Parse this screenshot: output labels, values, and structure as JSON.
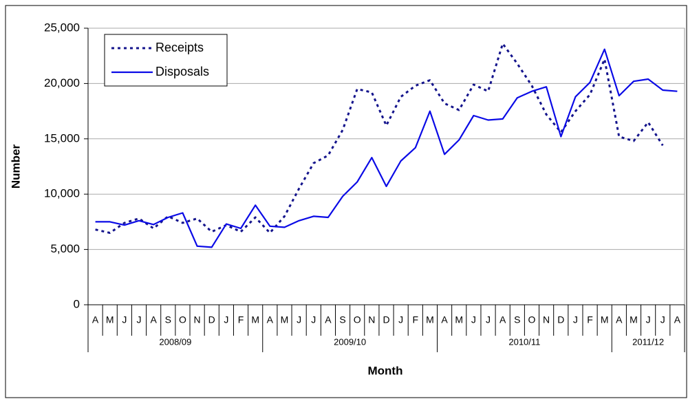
{
  "chart_data": {
    "type": "line",
    "x_label": "Month",
    "y_label": "Number",
    "categories": [
      "A",
      "M",
      "J",
      "J",
      "A",
      "S",
      "O",
      "N",
      "D",
      "J",
      "F",
      "M",
      "A",
      "M",
      "J",
      "J",
      "A",
      "S",
      "O",
      "N",
      "D",
      "J",
      "F",
      "M",
      "A",
      "M",
      "J",
      "J",
      "A",
      "S",
      "O",
      "N",
      "D",
      "J",
      "F",
      "M",
      "A",
      "M",
      "J",
      "J",
      "A"
    ],
    "category_groups": [
      {
        "label": "2008/09",
        "size": 12
      },
      {
        "label": "2009/10",
        "size": 12
      },
      {
        "label": "2010/11",
        "size": 12
      },
      {
        "label": "2011/12",
        "size": 5
      }
    ],
    "series": [
      {
        "name": "Receipts",
        "color": "#14148c",
        "style": "dotted",
        "values": [
          6800,
          6500,
          7400,
          7800,
          6900,
          8000,
          7400,
          7800,
          6600,
          7200,
          6600,
          7900,
          6500,
          8000,
          10500,
          12800,
          13500,
          15800,
          19500,
          19200,
          16200,
          18800,
          19800,
          20300,
          18200,
          17600,
          19900,
          19300,
          23600,
          21800,
          19800,
          17200,
          15600,
          17500,
          19000,
          22200,
          15200,
          14800,
          16500,
          14400,
          null
        ]
      },
      {
        "name": "Disposals",
        "color": "#0a0ae6",
        "style": "solid",
        "values": [
          7500,
          7500,
          7200,
          7600,
          7250,
          7900,
          8300,
          5300,
          5200,
          7300,
          6900,
          9000,
          7100,
          7000,
          7600,
          8000,
          7900,
          9800,
          11100,
          13300,
          10700,
          13000,
          14200,
          17500,
          13600,
          14900,
          17100,
          16700,
          16800,
          18700,
          19300,
          19700,
          15200,
          18800,
          20100,
          23100,
          18900,
          20200,
          20400,
          19400,
          19300
        ]
      }
    ],
    "ylim": [
      0,
      25000
    ],
    "yticks": [
      0,
      {
        "value": 5000,
        "label": "5,000"
      },
      {
        "value": 10000,
        "label": "10,000"
      },
      {
        "value": 15000,
        "label": "15,000"
      },
      {
        "value": 20000,
        "label": "20,000"
      },
      {
        "value": 25000,
        "label": "25,000"
      }
    ],
    "grid": true,
    "legend": "top-left"
  }
}
